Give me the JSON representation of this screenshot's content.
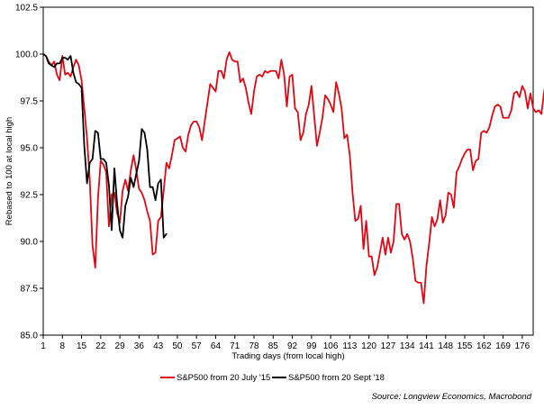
{
  "chart_data": {
    "type": "line",
    "xlabel": "Trading days (from local high)",
    "ylabel": "Rebased to 100 at local high",
    "xlim": [
      1,
      180
    ],
    "ylim": [
      85.0,
      102.5
    ],
    "yticks": [
      85.0,
      87.5,
      90.0,
      92.5,
      95.0,
      97.5,
      100.0,
      102.5
    ],
    "yticklabels": [
      "85.0",
      "87.5",
      "90.0",
      "92.5",
      "95.0",
      "97.5",
      "100.0",
      "102.5"
    ],
    "xticks": [
      1,
      8,
      15,
      22,
      29,
      36,
      43,
      50,
      57,
      64,
      71,
      78,
      85,
      92,
      99,
      106,
      113,
      120,
      127,
      134,
      141,
      148,
      155,
      162,
      169,
      176
    ],
    "xticklabels": [
      "1",
      "8",
      "15",
      "22",
      "29",
      "36",
      "43",
      "50",
      "57",
      "64",
      "71",
      "78",
      "85",
      "92",
      "99",
      "106",
      "113",
      "120",
      "127",
      "134",
      "141",
      "148",
      "155",
      "162",
      "169",
      "176"
    ],
    "grid": false,
    "legend_position": "bottom",
    "source": "Source: Longview Economics, Macrobond",
    "series": [
      {
        "name": "S&P500 from 20 July '15",
        "color": "#e30613",
        "values": [
          100.0,
          99.9,
          99.6,
          99.4,
          99.6,
          98.9,
          98.6,
          99.9,
          98.9,
          99.0,
          98.8,
          99.3,
          99.7,
          99.4,
          98.6,
          97.1,
          95.5,
          93.3,
          89.8,
          88.6,
          92.3,
          94.3,
          94.1,
          93.7,
          90.8,
          92.5,
          92.6,
          91.5,
          91.0,
          92.7,
          93.3,
          92.7,
          93.8,
          94.6,
          93.8,
          92.8,
          92.6,
          92.2,
          91.6,
          91.1,
          89.3,
          89.4,
          91.1,
          91.3,
          92.7,
          94.2,
          93.9,
          94.6,
          95.4,
          95.5,
          95.6,
          95.0,
          94.8,
          95.7,
          96.2,
          96.4,
          96.4,
          96.1,
          95.4,
          96.4,
          97.4,
          98.4,
          98.2,
          98.0,
          99.1,
          99.1,
          98.7,
          99.7,
          100.1,
          99.7,
          99.6,
          99.6,
          98.5,
          98.7,
          98.2,
          97.4,
          96.8,
          98.0,
          98.8,
          98.9,
          98.8,
          99.1,
          99.0,
          99.1,
          99.1,
          99.1,
          98.7,
          99.7,
          98.9,
          97.2,
          98.8,
          98.9,
          97.1,
          96.9,
          95.4,
          95.8,
          96.8,
          97.3,
          98.3,
          96.7,
          95.1,
          95.8,
          96.6,
          97.8,
          97.6,
          97.3,
          96.9,
          98.5,
          97.9,
          97.1,
          95.5,
          95.7,
          94.6,
          92.6,
          91.1,
          91.2,
          91.9,
          89.6,
          91.1,
          89.2,
          89.2,
          88.2,
          88.6,
          89.4,
          90.2,
          89.3,
          90.2,
          89.4,
          90.0,
          92.0,
          92.0,
          90.4,
          90.1,
          90.4,
          90.0,
          89.1,
          87.9,
          87.8,
          87.8,
          86.7,
          88.7,
          89.9,
          91.3,
          90.8,
          91.2,
          92.2,
          91.0,
          91.4,
          92.6,
          92.5,
          91.8,
          93.7,
          94.0,
          94.4,
          94.7,
          94.9,
          94.9,
          93.8,
          94.3,
          94.4,
          95.8,
          95.9,
          95.8,
          96.1,
          96.7,
          97.2,
          97.3,
          97.2,
          96.6,
          96.6,
          96.6,
          97.0,
          97.9,
          98.0,
          97.7,
          98.3,
          98.0,
          97.1,
          97.9,
          97.1,
          96.9,
          97.0,
          96.8,
          98.0,
          98.7,
          98.7,
          98.6
        ]
      },
      {
        "name": "S&P500 from 20 Sept '18",
        "color": "#000000",
        "values": [
          100.0,
          99.9,
          99.5,
          99.4,
          99.3,
          99.5,
          99.5,
          99.8,
          99.8,
          99.7,
          99.9,
          99.0,
          98.5,
          98.4,
          98.2,
          95.1,
          93.1,
          94.2,
          94.4,
          95.9,
          95.8,
          94.4,
          94.4,
          94.2,
          93.0,
          90.6,
          93.9,
          92.0,
          90.6,
          90.2,
          91.9,
          92.4,
          93.4,
          92.9,
          93.6,
          94.3,
          96.0,
          95.8,
          94.9,
          92.9,
          92.9,
          92.2,
          93.1,
          93.3,
          90.2,
          90.4
        ]
      }
    ]
  }
}
